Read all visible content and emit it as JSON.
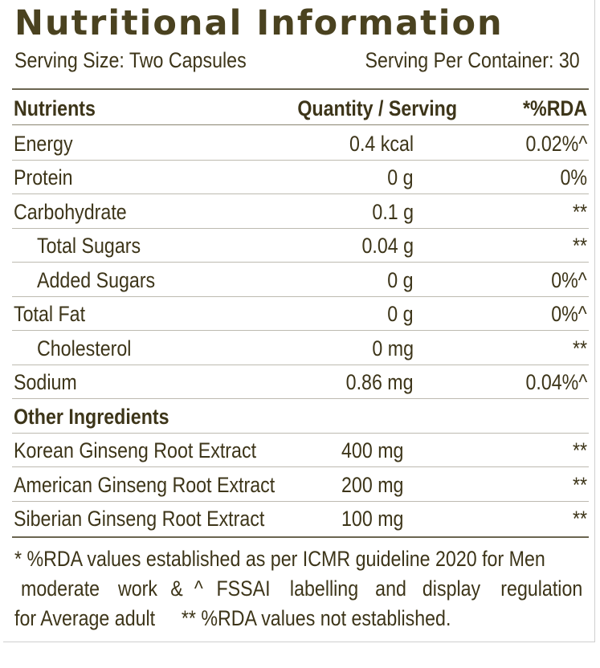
{
  "title": "Nutritional Information",
  "serving_size": "Serving Size: Two Capsules",
  "serving_per_container": "Serving Per Container: 30",
  "headers": {
    "nutrient": "Nutrients",
    "quantity": "Quantity / Serving",
    "rda": "*%RDA"
  },
  "nutrients": [
    {
      "name": "Energy",
      "quantity": "0.4 kcal",
      "rda": "0.02%^"
    },
    {
      "name": "Protein",
      "quantity": "0 g",
      "rda": "0%"
    },
    {
      "name": "Carbohydrate",
      "quantity": "0.1 g",
      "rda": "**"
    },
    {
      "name": "Total Sugars",
      "quantity": "0.04 g",
      "rda": "**"
    },
    {
      "name": "Added Sugars",
      "quantity": "0 g",
      "rda": "0%^"
    },
    {
      "name": "Total Fat",
      "quantity": "0 g",
      "rda": "0%^"
    },
    {
      "name": "Cholesterol",
      "quantity": "0 mg",
      "rda": "**"
    },
    {
      "name": "Sodium",
      "quantity": "0.86 mg",
      "rda": "0.04%^"
    }
  ],
  "other_heading": "Other Ingredients",
  "ingredients": [
    {
      "name": "Korean Ginseng  Root Extract",
      "quantity": "400 mg",
      "rda": "**"
    },
    {
      "name": "American Ginseng  Root Extract",
      "quantity": "200 mg",
      "rda": "**"
    },
    {
      "name": "Siberian Ginseng  Root Extract",
      "quantity": "100 mg",
      "rda": "**"
    }
  ],
  "footnote": {
    "line1": "* %RDA values established as per ICMR guideline 2020 for Men",
    "line2_words": [
      "moderate",
      "work",
      "&",
      "^",
      "FSSAI",
      "labelling",
      "and",
      "display",
      "regulation"
    ],
    "line3_a": "for Average adult",
    "line3_b": "** %RDA values not established."
  }
}
